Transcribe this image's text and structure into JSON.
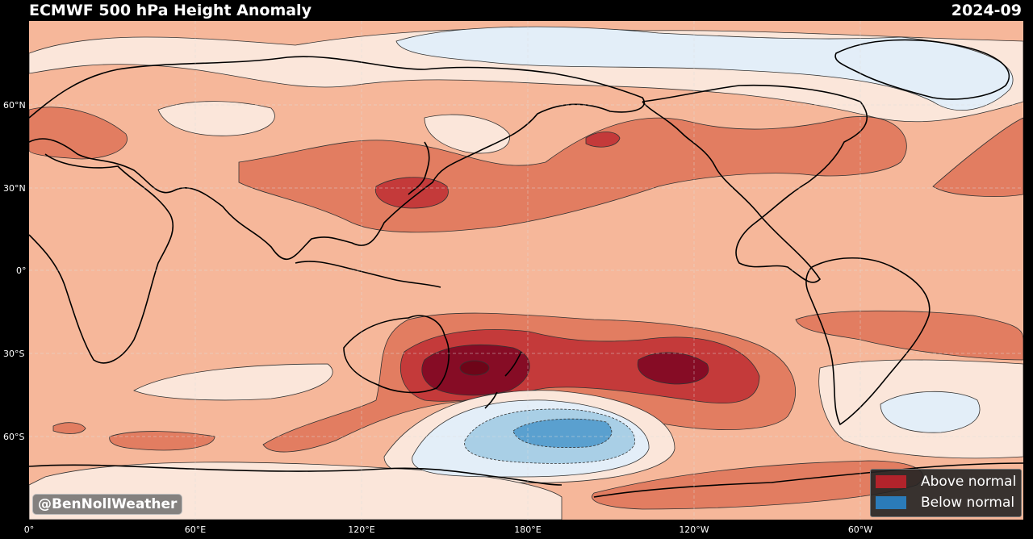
{
  "header": {
    "title": "ECMWF 500 hPa Height Anomaly",
    "date": "2024-09"
  },
  "axes": {
    "lat_labels": [
      "60°N",
      "30°N",
      "0°",
      "30°S",
      "60°S"
    ],
    "lon_labels": [
      "0°",
      "60°E",
      "120°E",
      "180°E",
      "120°W",
      "60°W"
    ]
  },
  "legend": {
    "above_label": "Above normal",
    "below_label": "Below normal",
    "above_color": "#b2232b",
    "below_color": "#2b7bb9"
  },
  "credit": "@BenNollWeather",
  "colors": {
    "anomaly_weak_positive": "#f6b79a",
    "anomaly_moderate_positive": "#e27d61",
    "anomaly_strong_positive": "#c43a3a",
    "anomaly_extreme_positive": "#860c25",
    "near_normal": "#fbe6da",
    "weak_negative": "#e3eef8",
    "moderate_negative": "#a9cfe6",
    "strong_negative": "#5aa0cf",
    "land_outline": "#000000"
  }
}
